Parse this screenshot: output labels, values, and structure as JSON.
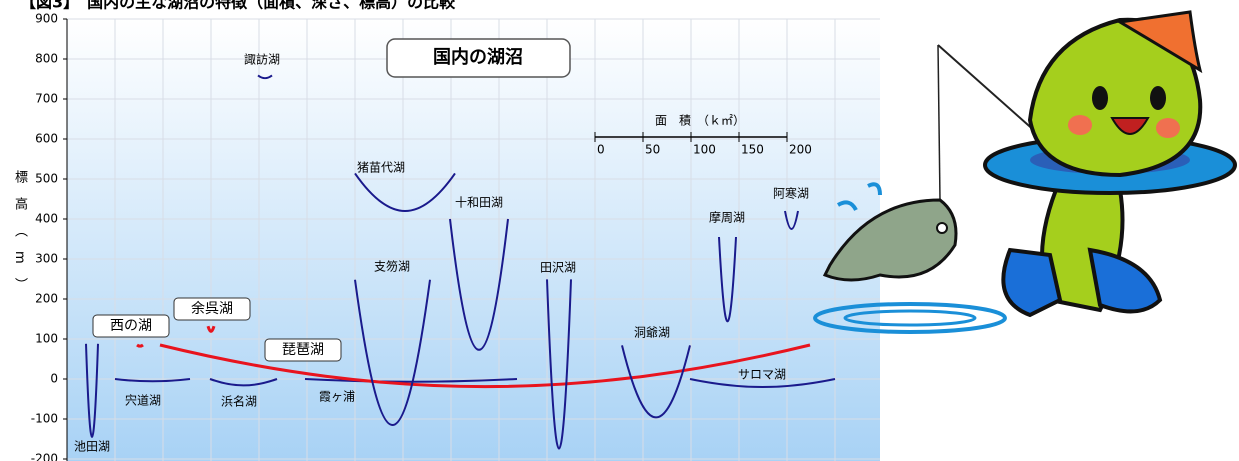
{
  "chart_data": {
    "type": "profile",
    "title": "【図3】　国内の主な湖沼の特徴（面積、深さ、標高）の比較",
    "legend_title": "国内の湖沼",
    "y_label": "標高（m）",
    "ylim": [
      -200,
      900
    ],
    "yticks": [
      -200,
      -100,
      0,
      100,
      200,
      300,
      400,
      500,
      600,
      700,
      800,
      900
    ],
    "area_scale_label": "面　積　（ｋ㎡）",
    "area_ticks": [
      0,
      50,
      100,
      150,
      200
    ],
    "grid": true,
    "lakes": [
      {
        "name": "池田湖",
        "elevation": 88,
        "depth": 233,
        "color": "#1a1a8c"
      },
      {
        "name": "宍道湖",
        "elevation": 0,
        "depth": 6,
        "color": "#1a1a8c"
      },
      {
        "name": "浜名湖",
        "elevation": 0,
        "depth": 16,
        "color": "#1a1a8c"
      },
      {
        "name": "霞ヶ浦",
        "elevation": 0,
        "depth": 7,
        "color": "#1a1a8c"
      },
      {
        "name": "琵琶湖",
        "elevation": 85,
        "depth": 104,
        "color": "#e8141e"
      },
      {
        "name": "西の湖",
        "elevation": 85,
        "depth": 3,
        "color": "#e8141e"
      },
      {
        "name": "余呉湖",
        "elevation": 132,
        "depth": 13,
        "color": "#e8141e"
      },
      {
        "name": "支笏湖",
        "elevation": 248,
        "depth": 363,
        "color": "#1a1a8c"
      },
      {
        "name": "猪苗代湖",
        "elevation": 514,
        "depth": 94,
        "color": "#1a1a8c"
      },
      {
        "name": "十和田湖",
        "elevation": 400,
        "depth": 327,
        "color": "#1a1a8c"
      },
      {
        "name": "田沢湖",
        "elevation": 249,
        "depth": 423,
        "color": "#1a1a8c"
      },
      {
        "name": "洞爺湖",
        "elevation": 84,
        "depth": 180,
        "color": "#1a1a8c"
      },
      {
        "name": "サロマ湖",
        "elevation": 0,
        "depth": 20,
        "color": "#1a1a8c"
      },
      {
        "name": "摩周湖",
        "elevation": 355,
        "depth": 211,
        "color": "#1a1a8c"
      },
      {
        "name": "阿寒湖",
        "elevation": 420,
        "depth": 45,
        "color": "#1a1a8c"
      },
      {
        "name": "諏訪湖",
        "elevation": 759,
        "depth": 7,
        "color": "#1a1a8c"
      }
    ]
  }
}
